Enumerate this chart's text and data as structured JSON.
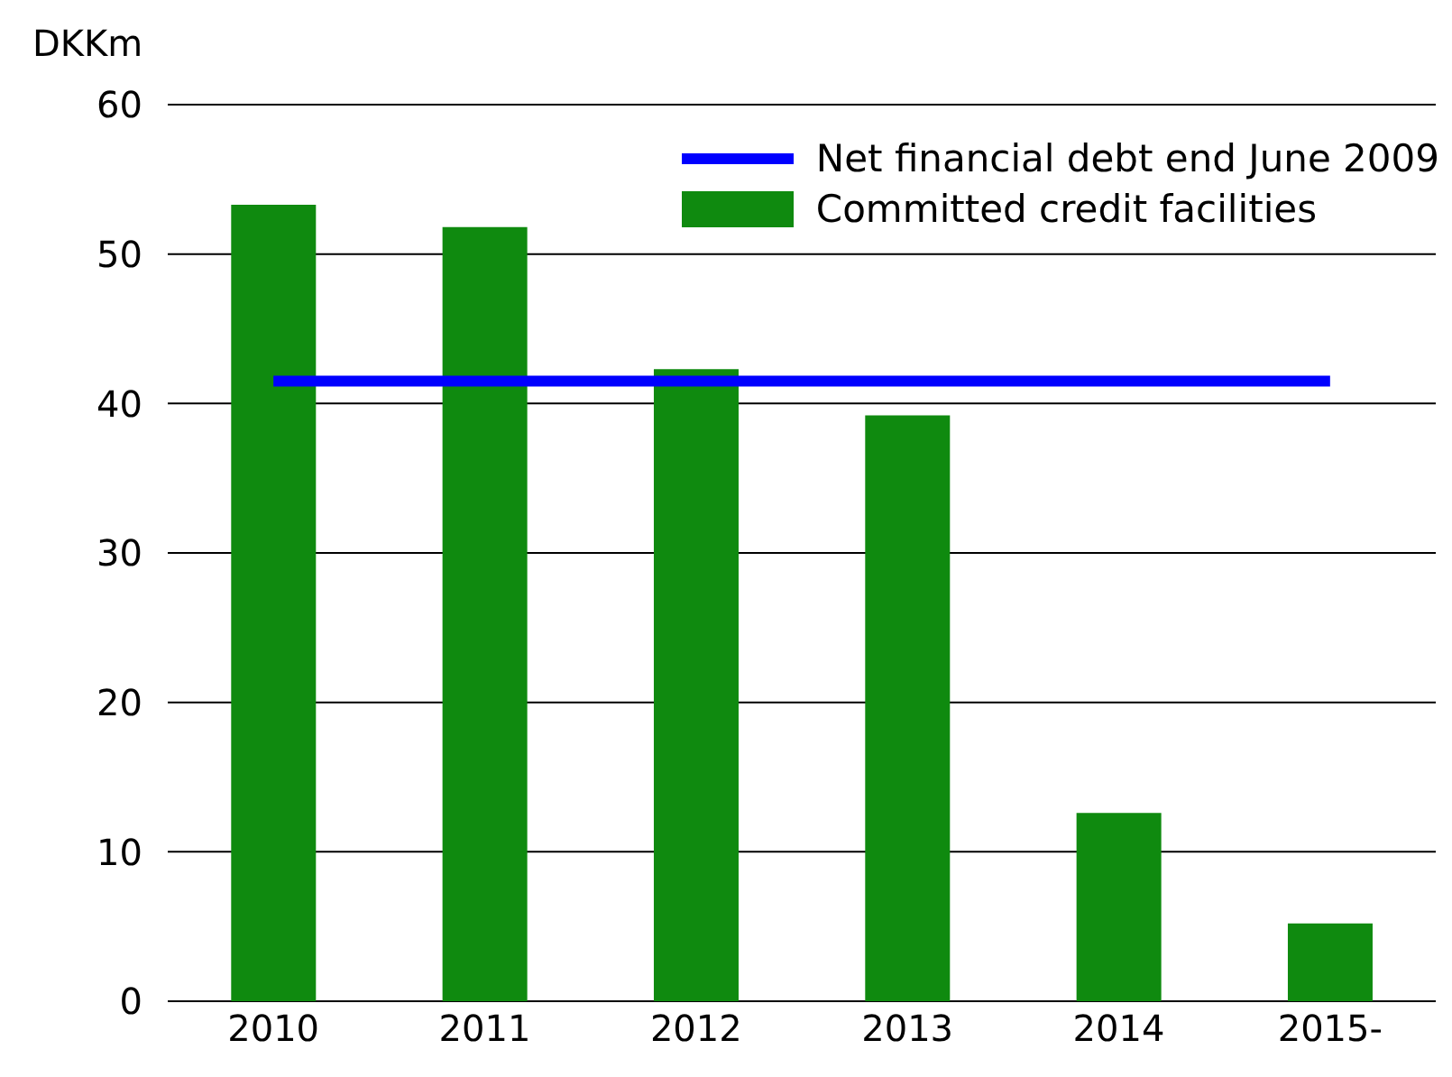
{
  "chart_data": {
    "type": "bar",
    "ylabel": "DKKm",
    "categories": [
      "2010",
      "2011",
      "2012",
      "2013",
      "2014",
      "2015-"
    ],
    "series": [
      {
        "name": "Net financial debt end June 2009",
        "type": "line",
        "color": "#0000ff",
        "values": [
          41.5,
          41.5,
          41.5,
          41.5,
          41.5,
          41.5
        ]
      },
      {
        "name": "Committed credit facilities",
        "color": "#0f8a0f",
        "values": [
          53.3,
          51.8,
          42.3,
          39.2,
          12.6,
          5.2
        ]
      }
    ],
    "ylim": [
      0,
      60
    ],
    "yticks": [
      0,
      10,
      20,
      30,
      40,
      50,
      60
    ],
    "grid": "y",
    "legend": "top right",
    "marker": "none"
  }
}
